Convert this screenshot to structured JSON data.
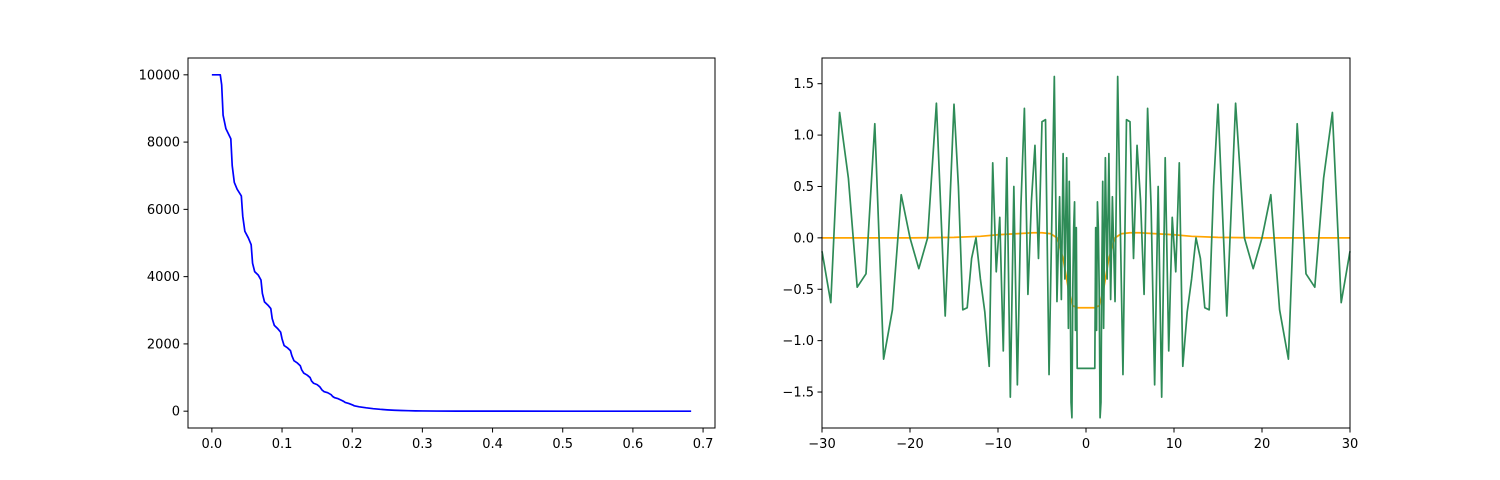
{
  "chart_data": [
    {
      "type": "line",
      "title": "",
      "xlabel": "",
      "ylabel": "",
      "xlim": [
        -0.034,
        0.717
      ],
      "ylim": [
        -500,
        10500
      ],
      "xticks": [
        0.0,
        0.1,
        0.2,
        0.3,
        0.4,
        0.5,
        0.6,
        0.7
      ],
      "xtick_labels": [
        "0.0",
        "0.1",
        "0.2",
        "0.3",
        "0.4",
        "0.5",
        "0.6",
        "0.7"
      ],
      "yticks": [
        0,
        2000,
        4000,
        6000,
        8000,
        10000
      ],
      "ytick_labels": [
        "0",
        "2000",
        "4000",
        "6000",
        "8000",
        "10000"
      ],
      "grid": false,
      "series": [
        {
          "color": "#0000ff",
          "x": [
            0.0,
            0.012,
            0.014,
            0.016,
            0.02,
            0.027,
            0.029,
            0.032,
            0.036,
            0.042,
            0.044,
            0.047,
            0.052,
            0.056,
            0.058,
            0.061,
            0.066,
            0.07,
            0.072,
            0.075,
            0.08,
            0.084,
            0.086,
            0.089,
            0.094,
            0.098,
            0.1,
            0.103,
            0.108,
            0.112,
            0.114,
            0.117,
            0.122,
            0.126,
            0.128,
            0.131,
            0.136,
            0.14,
            0.142,
            0.145,
            0.15,
            0.154,
            0.157,
            0.16,
            0.165,
            0.17,
            0.172,
            0.175,
            0.18,
            0.185,
            0.188,
            0.19,
            0.195,
            0.2,
            0.203,
            0.21,
            0.22,
            0.23,
            0.24,
            0.25,
            0.26,
            0.27,
            0.28,
            0.29,
            0.3,
            0.32,
            0.35,
            0.4,
            0.5,
            0.6,
            0.683
          ],
          "y": [
            10000,
            10000,
            9700,
            8800,
            8400,
            8100,
            7300,
            6800,
            6600,
            6400,
            5800,
            5350,
            5150,
            4950,
            4400,
            4150,
            4050,
            3900,
            3500,
            3250,
            3150,
            3050,
            2750,
            2550,
            2450,
            2350,
            2150,
            1950,
            1880,
            1800,
            1650,
            1500,
            1430,
            1350,
            1230,
            1130,
            1070,
            1000,
            900,
            830,
            790,
            720,
            630,
            580,
            550,
            490,
            440,
            400,
            370,
            320,
            290,
            260,
            230,
            190,
            160,
            130,
            100,
            75,
            55,
            40,
            28,
            20,
            14,
            10,
            7,
            4,
            2,
            1,
            0,
            0,
            0
          ]
        }
      ]
    },
    {
      "type": "line",
      "title": "",
      "xlabel": "",
      "ylabel": "",
      "xlim": [
        -30.0,
        30.0
      ],
      "ylim": [
        -1.85,
        1.75
      ],
      "xticks": [
        -30,
        -20,
        -10,
        0,
        10,
        20,
        30
      ],
      "xtick_labels": [
        "−30",
        "−20",
        "−10",
        "0",
        "10",
        "20",
        "30"
      ],
      "yticks": [
        -1.5,
        -1.0,
        -0.5,
        0.0,
        0.5,
        1.0,
        1.5
      ],
      "ytick_labels": [
        "−1.5",
        "−1.0",
        "−0.5",
        "0.0",
        "0.5",
        "1.0",
        "1.5"
      ],
      "grid": false,
      "series": [
        {
          "color": "#ffa500",
          "x": [
            -30,
            -25,
            -20,
            -15,
            -12,
            -10,
            -8,
            -6,
            -5,
            -4,
            -3.3,
            -2.6,
            -2,
            -1.5,
            -1,
            0,
            1,
            1.5,
            2,
            2.6,
            3.3,
            4,
            5,
            6,
            8,
            10,
            12,
            15,
            20,
            25,
            30
          ],
          "y": [
            0.0,
            0.0,
            0.0,
            0.005,
            0.015,
            0.03,
            0.04,
            0.05,
            0.05,
            0.04,
            0.0,
            -0.2,
            -0.5,
            -0.66,
            -0.68,
            -0.68,
            -0.68,
            -0.66,
            -0.5,
            -0.2,
            0.0,
            0.04,
            0.05,
            0.05,
            0.04,
            0.03,
            0.015,
            0.005,
            0.0,
            0.0,
            0.0
          ]
        },
        {
          "color": "#2e8b57",
          "x": [
            -30,
            -29,
            -28,
            -27,
            -26,
            -25,
            -24,
            -23,
            -22,
            -21,
            -20,
            -19,
            -18,
            -17,
            -16,
            -15,
            -14.5,
            -14,
            -13.5,
            -13,
            -12.5,
            -12,
            -11.5,
            -11,
            -10.6,
            -10.2,
            -9.8,
            -9.4,
            -9.0,
            -8.6,
            -8.2,
            -7.8,
            -7.4,
            -7.0,
            -6.6,
            -6.2,
            -5.8,
            -5.4,
            -5.0,
            -4.6,
            -4.2,
            -3.9,
            -3.6,
            -3.3,
            -3.0,
            -2.8,
            -2.6,
            -2.4,
            -2.2,
            -2.0,
            -1.9,
            -1.8,
            -1.7,
            -1.6,
            -1.5,
            -1.4,
            -1.3,
            -1.2,
            -1.1,
            -1.0,
            1.0,
            1.1,
            1.2,
            1.3,
            1.4,
            1.5,
            1.6,
            1.7,
            1.8,
            1.9,
            2.0,
            2.2,
            2.4,
            2.6,
            2.8,
            3.0,
            3.3,
            3.6,
            3.9,
            4.2,
            4.6,
            5.0,
            5.4,
            5.8,
            6.2,
            6.6,
            7.0,
            7.4,
            7.8,
            8.2,
            8.6,
            9.0,
            9.4,
            9.8,
            10.2,
            10.6,
            11,
            11.5,
            12,
            12.5,
            13,
            13.5,
            14,
            14.5,
            15,
            16,
            17,
            18,
            19,
            20,
            21,
            22,
            23,
            24,
            25,
            26,
            27,
            28,
            29,
            30
          ],
          "y": [
            -0.13,
            -0.63,
            1.22,
            0.58,
            -0.48,
            -0.35,
            1.11,
            -1.18,
            -0.7,
            0.42,
            0.0,
            -0.3,
            0.0,
            1.31,
            -0.76,
            1.3,
            0.5,
            -0.7,
            -0.68,
            -0.2,
            0.0,
            -0.4,
            -0.72,
            -1.25,
            0.73,
            -0.33,
            0.2,
            -1.1,
            0.78,
            -1.55,
            0.5,
            -1.43,
            0.3,
            1.26,
            -0.55,
            0.36,
            0.9,
            -0.2,
            1.13,
            1.15,
            -1.33,
            0.1,
            1.57,
            -0.62,
            0.4,
            -0.6,
            0.82,
            -0.4,
            0.78,
            -0.88,
            0.55,
            -0.3,
            -1.6,
            -1.75,
            -0.5,
            0.1,
            0.35,
            -0.9,
            0.1,
            -1.27,
            -1.27,
            0.1,
            -0.9,
            0.35,
            0.1,
            -0.5,
            -1.75,
            -1.6,
            -0.3,
            0.55,
            -0.88,
            0.78,
            -0.4,
            0.82,
            -0.6,
            0.4,
            -0.62,
            1.57,
            0.1,
            -1.33,
            1.15,
            1.13,
            -0.2,
            0.9,
            0.36,
            -0.55,
            1.26,
            0.3,
            -1.43,
            0.5,
            -1.55,
            0.78,
            -1.1,
            0.2,
            -0.33,
            0.73,
            -1.25,
            -0.72,
            -0.4,
            0.0,
            -0.2,
            -0.68,
            -0.7,
            0.5,
            1.3,
            -0.76,
            1.31,
            0.0,
            -0.3,
            0.0,
            0.42,
            -0.7,
            -1.18,
            1.11,
            -0.35,
            -0.48,
            0.58,
            1.22,
            -0.63,
            -0.13
          ]
        }
      ]
    }
  ]
}
